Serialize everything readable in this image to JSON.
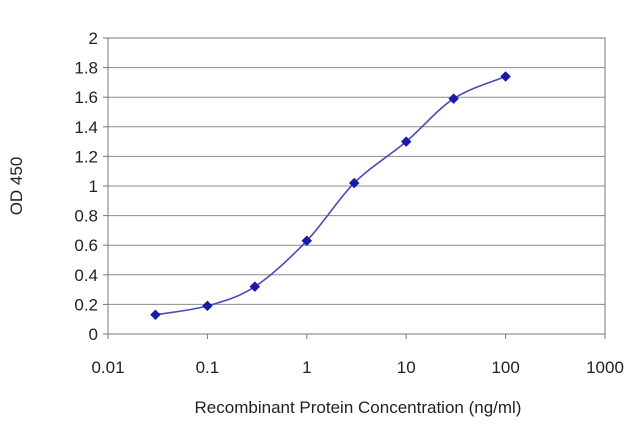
{
  "chart_data": {
    "type": "line",
    "title": "",
    "xlabel": "Recombinant Protein Concentration (ng/ml)",
    "ylabel": "OD 450",
    "x_scale": "log",
    "xlim": [
      0.01,
      1000
    ],
    "ylim": [
      0,
      2
    ],
    "x_ticks": [
      0.01,
      0.1,
      1,
      10,
      100,
      1000
    ],
    "x_tick_labels": [
      "0.01",
      "0.1",
      "1",
      "10",
      "100",
      "1000"
    ],
    "y_ticks": [
      0,
      0.2,
      0.4,
      0.6,
      0.8,
      1,
      1.2,
      1.4,
      1.6,
      1.8,
      2
    ],
    "y_tick_labels": [
      "0",
      "0.2",
      "0.4",
      "0.6",
      "0.8",
      "1",
      "1.2",
      "1.4",
      "1.6",
      "1.8",
      "2"
    ],
    "grid": "horizontal",
    "legend": "none",
    "series": [
      {
        "x": [
          0.03,
          0.1,
          0.3,
          1,
          3,
          10,
          30,
          100
        ],
        "y": [
          0.13,
          0.19,
          0.32,
          0.63,
          1.02,
          1.3,
          1.59,
          1.74
        ],
        "color": "#1a1aa8",
        "line_color": "#4a4ab8"
      }
    ]
  }
}
